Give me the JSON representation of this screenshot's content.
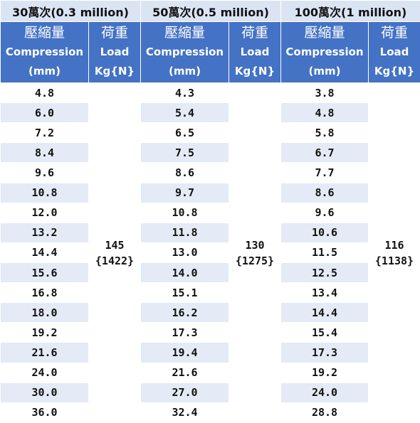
{
  "groups": [
    {
      "title": "30萬次(0.3 million)",
      "compression_header": {
        "cjk": "壓縮量",
        "en": "Compression",
        "unit": "(mm)"
      },
      "load_header": {
        "cjk": "荷重",
        "en": "Load",
        "unit": "Kg{N}"
      },
      "compressions": [
        "4.8",
        "6.0",
        "7.2",
        "8.4",
        "9.6",
        "10.8",
        "12.0",
        "13.2",
        "14.4",
        "15.6",
        "16.8",
        "18.0",
        "19.2",
        "21.6",
        "24.0",
        "30.0",
        "36.0"
      ],
      "load_kg": "145",
      "load_n": "{1422}"
    },
    {
      "title": "50萬次(0.5 million)",
      "compression_header": {
        "cjk": "壓縮量",
        "en": "Compression",
        "unit": "(mm)"
      },
      "load_header": {
        "cjk": "荷重",
        "en": "Load",
        "unit": "Kg{N}"
      },
      "compressions": [
        "4.3",
        "5.4",
        "6.5",
        "7.5",
        "8.6",
        "9.7",
        "10.8",
        "11.8",
        "13.0",
        "14.0",
        "15.1",
        "16.2",
        "17.3",
        "19.4",
        "21.6",
        "27.0",
        "32.4"
      ],
      "load_kg": "130",
      "load_n": "{1275}"
    },
    {
      "title": "100萬次(1 million)",
      "compression_header": {
        "cjk": "壓縮量",
        "en": "Compression",
        "unit": "(mm)"
      },
      "load_header": {
        "cjk": "荷重",
        "en": "Load",
        "unit": "Kg{N}"
      },
      "compressions": [
        "3.8",
        "4.8",
        "5.8",
        "6.7",
        "7.7",
        "8.6",
        "9.6",
        "10.6",
        "11.5",
        "12.5",
        "13.4",
        "14.4",
        "15.4",
        "17.3",
        "19.2",
        "24.0",
        "28.8"
      ],
      "load_kg": "116",
      "load_n": "{1138}"
    }
  ]
}
